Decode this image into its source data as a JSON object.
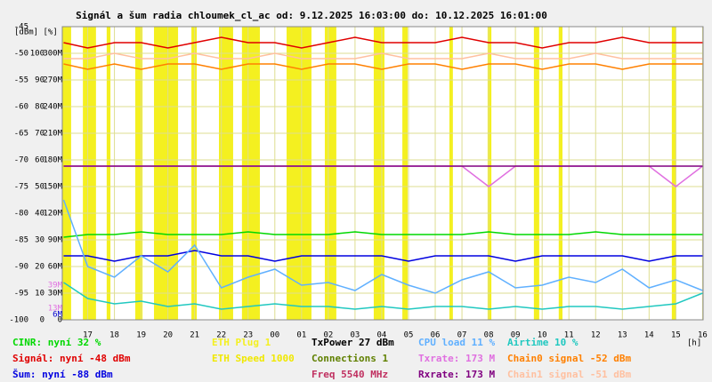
{
  "chart_data": {
    "type": "line",
    "title": "Signál a šum radia chloumek_cl_ac od: 9.12.2025 16:03:00 do: 10.12.2025 16:01:00",
    "y_units": "[dBm] [%]",
    "x_units": "[h]",
    "grid": true,
    "xlim": [
      16.05,
      40.02
    ],
    "xticks": [
      17,
      18,
      19,
      20,
      21,
      22,
      23,
      {
        "value": 24,
        "label": "00"
      },
      {
        "value": 25,
        "label": "01"
      },
      {
        "value": 26,
        "label": "02"
      },
      {
        "value": 27,
        "label": "03"
      },
      {
        "value": 28,
        "label": "04"
      },
      {
        "value": 29,
        "label": "05"
      },
      {
        "value": 30,
        "label": "06"
      },
      {
        "value": 31,
        "label": "07"
      },
      {
        "value": 32,
        "label": "08"
      },
      {
        "value": 33,
        "label": "09"
      },
      {
        "value": 34,
        "label": "10"
      },
      {
        "value": 35,
        "label": "11"
      },
      {
        "value": 36,
        "label": "12"
      },
      {
        "value": 37,
        "label": "13"
      },
      {
        "value": 38,
        "label": "14"
      },
      {
        "value": 39,
        "label": "15"
      },
      {
        "value": 40,
        "label": "16"
      }
    ],
    "ylim": [
      -100,
      -45
    ],
    "yticks": [
      -100,
      -95,
      -90,
      -85,
      -80,
      -75,
      -70,
      -65,
      -60,
      -55,
      -50,
      -45
    ],
    "y2lim": [
      0,
      110
    ],
    "y2ticks": [
      0,
      10,
      20,
      30,
      40,
      50,
      60,
      70,
      80,
      90,
      100
    ],
    "y3lim": [
      0,
      330
    ],
    "y3ticks": [
      0,
      {
        "value": 30,
        "label": "30M"
      },
      {
        "value": 60,
        "label": "60M"
      },
      {
        "value": 90,
        "label": "90M"
      },
      {
        "value": 120,
        "label": "120M"
      },
      {
        "value": 150,
        "label": "150M"
      },
      {
        "value": 180,
        "label": "180M"
      },
      {
        "value": 210,
        "label": "210M"
      },
      {
        "value": 240,
        "label": "240M"
      },
      {
        "value": 270,
        "label": "270M"
      },
      {
        "value": 300,
        "label": "300M"
      }
    ],
    "y3_notes": [
      {
        "value": 39,
        "label": "39M",
        "color": "#e070e0"
      },
      {
        "value": 13,
        "label": "13M",
        "color": "#e070e0"
      },
      {
        "value": 6,
        "label": "6M",
        "color": "#0000d0"
      }
    ],
    "x": [
      16.1,
      17,
      18,
      19,
      20,
      21,
      22,
      23,
      24,
      25,
      26,
      27,
      28,
      29,
      30,
      31,
      32,
      33,
      34,
      35,
      36,
      37,
      38,
      39,
      40
    ],
    "series": [
      {
        "name": "CINR: nyní 32 %",
        "color": "#00d800",
        "axis": "y2",
        "values": [
          31,
          32,
          32,
          33,
          32,
          32,
          32,
          33,
          32,
          32,
          32,
          33,
          32,
          32,
          32,
          32,
          33,
          32,
          32,
          32,
          33,
          32,
          32,
          32,
          32
        ]
      },
      {
        "name": "Signál: nyní -48 dBm",
        "color": "#e00000",
        "values": [
          -48,
          -49,
          -48,
          -48,
          -49,
          -48,
          -47,
          -48,
          -48,
          -49,
          -48,
          -47,
          -48,
          -48,
          -48,
          -47,
          -48,
          -48,
          -49,
          -48,
          -48,
          -47,
          -48,
          -48,
          -48
        ]
      },
      {
        "name": "Šum: nyní -88 dBm",
        "color": "#0000e0",
        "values": [
          -88,
          -88,
          -89,
          -88,
          -88,
          -87,
          -88,
          -88,
          -89,
          -88,
          -88,
          -88,
          -88,
          -89,
          -88,
          -88,
          -88,
          -89,
          -88,
          -88,
          -88,
          -88,
          -89,
          -88,
          -88
        ]
      },
      {
        "name": "CPU load 11 %",
        "color": "#60b0ff",
        "axis": "y2",
        "values": [
          45,
          20,
          16,
          24,
          18,
          28,
          12,
          16,
          19,
          13,
          14,
          11,
          17,
          13,
          10,
          15,
          18,
          12,
          13,
          16,
          14,
          19,
          12,
          15,
          11
        ]
      },
      {
        "name": "Txrate: 173 M",
        "color": "#e070e0",
        "axis": "y3",
        "values": [
          173,
          173,
          173,
          173,
          173,
          173,
          173,
          173,
          173,
          173,
          173,
          173,
          173,
          173,
          173,
          173,
          150,
          173,
          173,
          173,
          173,
          173,
          173,
          150,
          173
        ]
      },
      {
        "name": "Rxrate: 173 M",
        "color": "#800080",
        "axis": "y3",
        "values": [
          173,
          173,
          173,
          173,
          173,
          173,
          173,
          173,
          173,
          173,
          173,
          173,
          173,
          173,
          173,
          173,
          173,
          173,
          173,
          173,
          173,
          173,
          173,
          173,
          173
        ]
      },
      {
        "name": "Airtime 10 %",
        "color": "#20c8c0",
        "axis": "y2",
        "values": [
          14,
          8,
          6,
          7,
          5,
          6,
          4,
          5,
          6,
          5,
          5,
          4,
          5,
          4,
          5,
          5,
          4,
          5,
          4,
          5,
          5,
          4,
          5,
          6,
          10
        ]
      },
      {
        "name": "Chain0 signal -52 dBm",
        "color": "#ff8000",
        "values": [
          -52,
          -53,
          -52,
          -53,
          -52,
          -52,
          -53,
          -52,
          -52,
          -53,
          -52,
          -52,
          -53,
          -52,
          -52,
          -53,
          -52,
          -52,
          -53,
          -52,
          -52,
          -53,
          -52,
          -52,
          -52
        ]
      },
      {
        "name": "Chain1 signal -51 dBm",
        "color": "#ffc0a0",
        "values": [
          -51,
          -51,
          -50,
          -51,
          -51,
          -50,
          -51,
          -51,
          -50,
          -51,
          -51,
          -51,
          -50,
          -51,
          -51,
          -51,
          -50,
          -51,
          -51,
          -51,
          -50,
          -51,
          -51,
          -51,
          -51
        ]
      }
    ],
    "bands": {
      "name": "ETH Plug 1",
      "color": "#f4f020",
      "ranges": [
        [
          16.05,
          16.38
        ],
        [
          16.82,
          17.31
        ],
        [
          17.71,
          17.85
        ],
        [
          18.78,
          19.05
        ],
        [
          19.48,
          20.38
        ],
        [
          20.88,
          21.08
        ],
        [
          21.91,
          22.44
        ],
        [
          22.77,
          23.44
        ],
        [
          24.44,
          25.37
        ],
        [
          25.87,
          26.3
        ],
        [
          27.7,
          28.1
        ],
        [
          28.77,
          28.97
        ],
        [
          30.53,
          30.66
        ],
        [
          31.96,
          32.1
        ],
        [
          33.69,
          33.89
        ],
        [
          34.62,
          34.76
        ],
        [
          38.85,
          39.02
        ]
      ]
    },
    "legend_extra": [
      {
        "name": "ETH Speed 1000",
        "color": "#f0e800"
      },
      {
        "name": "TxPower 27 dBm",
        "color": "#000000"
      },
      {
        "name": "Connections 1",
        "color": "#608000"
      },
      {
        "name": "Freq 5540 MHz",
        "color": "#c03060"
      }
    ]
  }
}
